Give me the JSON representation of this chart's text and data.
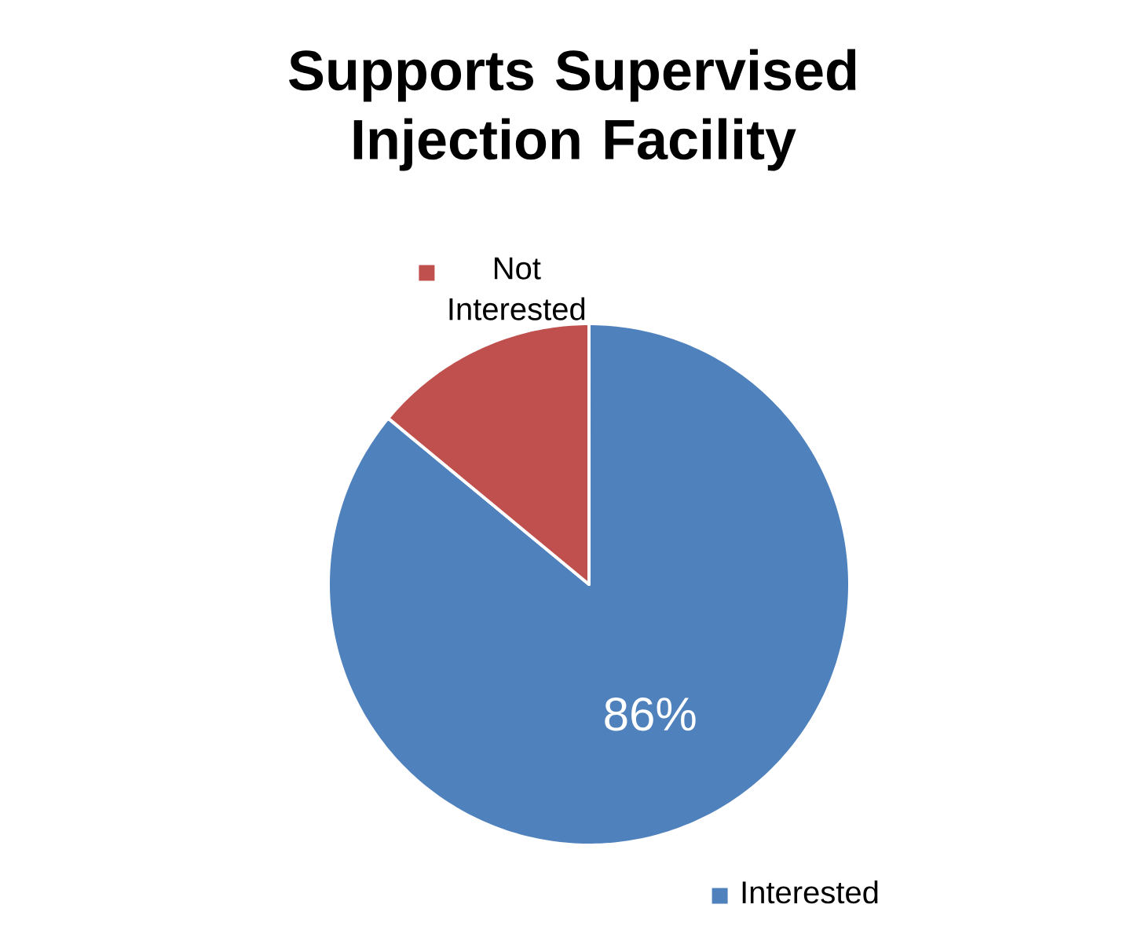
{
  "chart_data": {
    "type": "pie",
    "title": "Supports Supervised Injection Facility",
    "categories": [
      "Interested",
      "Not Interested"
    ],
    "values": [
      86,
      14
    ],
    "colors": [
      "#4f81bd",
      "#c0504d"
    ],
    "value_labels": [
      "86%",
      null
    ],
    "legend": "right"
  }
}
